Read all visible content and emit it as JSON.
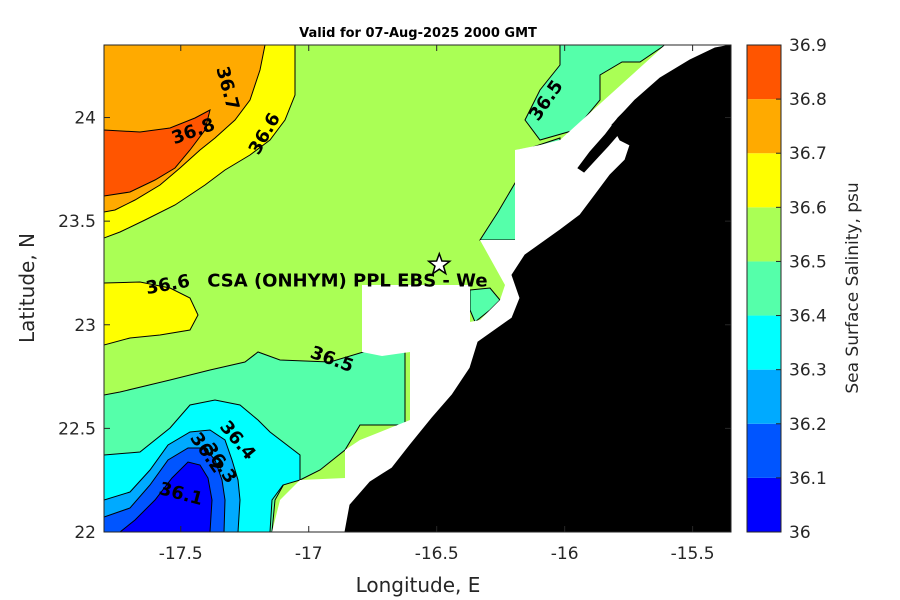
{
  "chart_data": {
    "type": "contour",
    "title": "Valid for 07-Aug-2025 2000 GMT",
    "xlabel": "Longitude, E",
    "ylabel": "Latitude, N",
    "xlim": [
      -17.8,
      -15.35
    ],
    "ylim": [
      22.0,
      24.35
    ],
    "xticks": [
      {
        "value": -17.5,
        "label": "-17.5"
      },
      {
        "value": -17.0,
        "label": "-17"
      },
      {
        "value": -16.5,
        "label": "-16.5"
      },
      {
        "value": -16.0,
        "label": "-16"
      },
      {
        "value": -15.5,
        "label": "-15.5"
      }
    ],
    "yticks": [
      {
        "value": 22.0,
        "label": "22"
      },
      {
        "value": 22.5,
        "label": "22.5"
      },
      {
        "value": 23.0,
        "label": "23"
      },
      {
        "value": 23.5,
        "label": "23.5"
      },
      {
        "value": 24.0,
        "label": "24"
      }
    ],
    "site": {
      "name": "CSA (ONHYM) PPL EBS  - We",
      "lon": -16.49,
      "lat": 23.29,
      "marker": "star"
    },
    "contour_labels": [
      {
        "text": "36.8",
        "lon": -17.45,
        "lat": 23.93,
        "angle": -20
      },
      {
        "text": "36.7",
        "lon": -17.32,
        "lat": 24.14,
        "angle": 75
      },
      {
        "text": "36.6",
        "lon": -17.17,
        "lat": 23.92,
        "angle": -60
      },
      {
        "text": "36.6",
        "lon": -17.55,
        "lat": 23.19,
        "angle": -10
      },
      {
        "text": "36.5",
        "lon": -16.07,
        "lat": 24.08,
        "angle": -55
      },
      {
        "text": "36.5",
        "lon": -16.91,
        "lat": 22.83,
        "angle": 20
      },
      {
        "text": "36.4",
        "lon": -17.28,
        "lat": 22.44,
        "angle": 50
      },
      {
        "text": "36.3",
        "lon": -17.35,
        "lat": 22.33,
        "angle": 55
      },
      {
        "text": "36.2",
        "lon": -17.4,
        "lat": 22.38,
        "angle": 55
      },
      {
        "text": "36.1",
        "lon": -17.5,
        "lat": 22.18,
        "angle": 15
      }
    ],
    "colorbar": {
      "label": "Sea Surface Salinity, psu",
      "min": 36.0,
      "max": 36.9,
      "levels": [
        {
          "from": 36.0,
          "to": 36.1,
          "color": "#0000ff"
        },
        {
          "from": 36.1,
          "to": 36.2,
          "color": "#0055ff"
        },
        {
          "from": 36.2,
          "to": 36.3,
          "color": "#00aaff"
        },
        {
          "from": 36.3,
          "to": 36.4,
          "color": "#00ffff"
        },
        {
          "from": 36.4,
          "to": 36.5,
          "color": "#55ffaa"
        },
        {
          "from": 36.5,
          "to": 36.6,
          "color": "#aaff55"
        },
        {
          "from": 36.6,
          "to": 36.7,
          "color": "#ffff00"
        },
        {
          "from": 36.7,
          "to": 36.8,
          "color": "#ffaa00"
        },
        {
          "from": 36.8,
          "to": 36.9,
          "color": "#ff5500"
        }
      ],
      "ticks": [
        "36",
        "36.1",
        "36.2",
        "36.3",
        "36.4",
        "36.5",
        "36.6",
        "36.7",
        "36.8",
        "36.9"
      ]
    }
  }
}
